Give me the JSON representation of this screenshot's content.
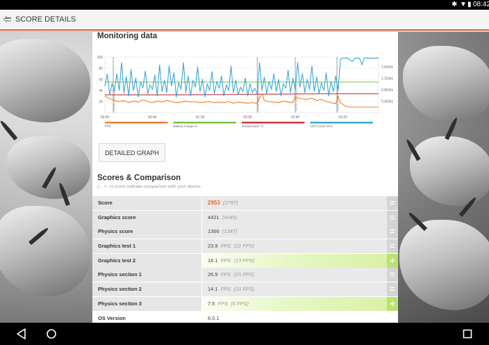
{
  "statusbar": {
    "time": "08:42"
  },
  "appbar": {
    "title": "SCORE DETAILS"
  },
  "monitoring": {
    "title": "Monitoring data",
    "button_label": "DETAILED GRAPH"
  },
  "chart_data": {
    "type": "line",
    "x_ticks": [
      "00:00",
      "00:40",
      "01:20",
      "02:00",
      "02:40",
      "03:20"
    ],
    "y_left_ticks": [
      20,
      40,
      60,
      80,
      100
    ],
    "y_right_ticks": [
      "0.4GHz",
      "0.8GHz",
      "1.2GHz",
      "1.6GHz"
    ],
    "xlim": [
      0,
      230
    ],
    "ylim": [
      0,
      100
    ],
    "legend_placement": "bottom",
    "markers": [
      {
        "x": 7,
        "label": "SLING SHOT ES 3.1"
      },
      {
        "x": 128,
        "label": "SLING SHOT ES 3.1"
      },
      {
        "x": 160,
        "label": "SLING SHOT ES 3.1"
      },
      {
        "x": 195,
        "label": "SLING SHOT PHYSICS"
      }
    ],
    "series": [
      {
        "name": "FPS",
        "color": "#f07f2a",
        "values": [
          [
            0,
            30
          ],
          [
            4,
            25
          ],
          [
            8,
            22
          ],
          [
            12,
            20
          ],
          [
            16,
            22
          ],
          [
            20,
            18
          ],
          [
            24,
            21
          ],
          [
            28,
            19
          ],
          [
            32,
            23
          ],
          [
            36,
            20
          ],
          [
            40,
            18
          ],
          [
            44,
            21
          ],
          [
            48,
            19
          ],
          [
            52,
            22
          ],
          [
            56,
            20
          ],
          [
            60,
            18
          ],
          [
            64,
            19
          ],
          [
            68,
            21
          ],
          [
            72,
            19
          ],
          [
            76,
            20
          ],
          [
            80,
            18
          ],
          [
            84,
            19
          ],
          [
            88,
            20
          ],
          [
            92,
            18
          ],
          [
            96,
            19
          ],
          [
            100,
            18
          ],
          [
            104,
            20
          ],
          [
            108,
            17
          ],
          [
            112,
            19
          ],
          [
            116,
            18
          ],
          [
            120,
            17
          ],
          [
            124,
            18
          ],
          [
            128,
            17
          ],
          [
            132,
            35
          ],
          [
            134,
            22
          ],
          [
            138,
            20
          ],
          [
            142,
            19
          ],
          [
            146,
            18
          ],
          [
            150,
            21
          ],
          [
            154,
            19
          ],
          [
            158,
            18
          ],
          [
            160,
            30
          ],
          [
            162,
            26
          ],
          [
            166,
            25
          ],
          [
            170,
            24
          ],
          [
            174,
            26
          ],
          [
            178,
            22
          ],
          [
            182,
            24
          ],
          [
            186,
            20
          ],
          [
            190,
            18
          ],
          [
            194,
            16
          ],
          [
            196,
            30
          ],
          [
            198,
            18
          ],
          [
            202,
            12
          ],
          [
            206,
            10
          ],
          [
            210,
            10
          ],
          [
            214,
            10
          ],
          [
            218,
            10
          ],
          [
            222,
            10
          ],
          [
            226,
            10
          ],
          [
            230,
            10
          ]
        ]
      },
      {
        "name": "Battery charge %",
        "color": "#7ac142",
        "values": [
          [
            0,
            55
          ],
          [
            60,
            55
          ],
          [
            120,
            55
          ],
          [
            180,
            55
          ],
          [
            230,
            55
          ]
        ]
      },
      {
        "name": "Temperature °C",
        "color": "#c9373f",
        "values": [
          [
            0,
            32
          ],
          [
            60,
            32
          ],
          [
            120,
            33
          ],
          [
            180,
            34
          ],
          [
            230,
            34
          ]
        ]
      },
      {
        "name": "CPU Clock GHz",
        "color": "#38a7dc",
        "values": [
          [
            0,
            48
          ],
          [
            2,
            70
          ],
          [
            4,
            32
          ],
          [
            6,
            52
          ],
          [
            8,
            38
          ],
          [
            10,
            70
          ],
          [
            12,
            40
          ],
          [
            14,
            90
          ],
          [
            16,
            35
          ],
          [
            18,
            65
          ],
          [
            20,
            30
          ],
          [
            22,
            78
          ],
          [
            24,
            40
          ],
          [
            26,
            62
          ],
          [
            28,
            28
          ],
          [
            30,
            55
          ],
          [
            32,
            45
          ],
          [
            34,
            75
          ],
          [
            36,
            34
          ],
          [
            38,
            50
          ],
          [
            40,
            42
          ],
          [
            42,
            68
          ],
          [
            44,
            30
          ],
          [
            46,
            86
          ],
          [
            48,
            38
          ],
          [
            50,
            58
          ],
          [
            52,
            36
          ],
          [
            54,
            84
          ],
          [
            56,
            48
          ],
          [
            58,
            72
          ],
          [
            60,
            28
          ],
          [
            62,
            54
          ],
          [
            64,
            42
          ],
          [
            66,
            90
          ],
          [
            68,
            36
          ],
          [
            70,
            66
          ],
          [
            72,
            30
          ],
          [
            74,
            58
          ],
          [
            76,
            46
          ],
          [
            78,
            82
          ],
          [
            80,
            38
          ],
          [
            82,
            60
          ],
          [
            84,
            28
          ],
          [
            86,
            52
          ],
          [
            88,
            40
          ],
          [
            90,
            74
          ],
          [
            92,
            34
          ],
          [
            94,
            56
          ],
          [
            96,
            44
          ],
          [
            98,
            66
          ],
          [
            100,
            30
          ],
          [
            102,
            50
          ],
          [
            104,
            40
          ],
          [
            106,
            84
          ],
          [
            108,
            36
          ],
          [
            110,
            58
          ],
          [
            112,
            32
          ],
          [
            114,
            46
          ],
          [
            116,
            38
          ],
          [
            118,
            62
          ],
          [
            120,
            30
          ],
          [
            122,
            52
          ],
          [
            124,
            36
          ],
          [
            126,
            44
          ],
          [
            128,
            34
          ],
          [
            130,
            90
          ],
          [
            132,
            40
          ],
          [
            134,
            64
          ],
          [
            136,
            34
          ],
          [
            138,
            56
          ],
          [
            140,
            42
          ],
          [
            142,
            70
          ],
          [
            144,
            38
          ],
          [
            146,
            60
          ],
          [
            148,
            30
          ],
          [
            150,
            52
          ],
          [
            152,
            44
          ],
          [
            154,
            76
          ],
          [
            156,
            36
          ],
          [
            158,
            62
          ],
          [
            160,
            40
          ],
          [
            162,
            90
          ],
          [
            164,
            46
          ],
          [
            166,
            70
          ],
          [
            168,
            36
          ],
          [
            170,
            60
          ],
          [
            172,
            42
          ],
          [
            174,
            84
          ],
          [
            176,
            38
          ],
          [
            178,
            64
          ],
          [
            180,
            34
          ],
          [
            182,
            54
          ],
          [
            184,
            40
          ],
          [
            186,
            72
          ],
          [
            188,
            30
          ],
          [
            190,
            56
          ],
          [
            192,
            38
          ],
          [
            194,
            66
          ],
          [
            196,
            40
          ],
          [
            198,
            96
          ],
          [
            200,
            98
          ],
          [
            204,
            98
          ],
          [
            208,
            92
          ],
          [
            210,
            98
          ],
          [
            214,
            98
          ],
          [
            216,
            86
          ],
          [
            218,
            98
          ],
          [
            222,
            98
          ],
          [
            226,
            98
          ],
          [
            230,
            98
          ]
        ]
      }
    ]
  },
  "scores": {
    "title": "Scores & Comparison",
    "subtitle": "(- , +, =) Icons indicate comparison with your device.",
    "rows": [
      {
        "label": "Score",
        "value": "2953",
        "ref": "(2797)",
        "unit": "",
        "icon": "=",
        "highlight": false
      },
      {
        "label": "Graphics score",
        "value": "4421",
        "ref": "(4045)",
        "unit": "",
        "icon": "=",
        "highlight": false
      },
      {
        "label": "Physics score",
        "value": "1366",
        "ref": "(1347)",
        "unit": "",
        "icon": "=",
        "highlight": false
      },
      {
        "label": "Graphics test 1",
        "value": "23.9",
        "ref": "(22 FPS)",
        "unit": "FPS",
        "icon": "=",
        "highlight": false
      },
      {
        "label": "Graphics test 2",
        "value": "16.1",
        "ref": "(13 FPS)",
        "unit": "FPS",
        "icon": "+",
        "highlight": true
      },
      {
        "label": "Physics section 1",
        "value": "26.9",
        "ref": "(25 FPS)",
        "unit": "FPS",
        "icon": "=",
        "highlight": false
      },
      {
        "label": "Physics section 2",
        "value": "14.1",
        "ref": "(13 FPS)",
        "unit": "FPS",
        "icon": "=",
        "highlight": false
      },
      {
        "label": "Physics section 3",
        "value": "7.5",
        "ref": "(6 FPS)",
        "unit": "FPS",
        "icon": "+",
        "highlight": true
      },
      {
        "label": "OS Version",
        "value": "6.0.1",
        "ref": "",
        "unit": "",
        "icon": "",
        "highlight": false
      }
    ]
  },
  "navbar": {
    "back_icon": "back-triangle-icon",
    "home_icon": "home-circle-icon",
    "recents_icon": "recents-square-icon"
  }
}
